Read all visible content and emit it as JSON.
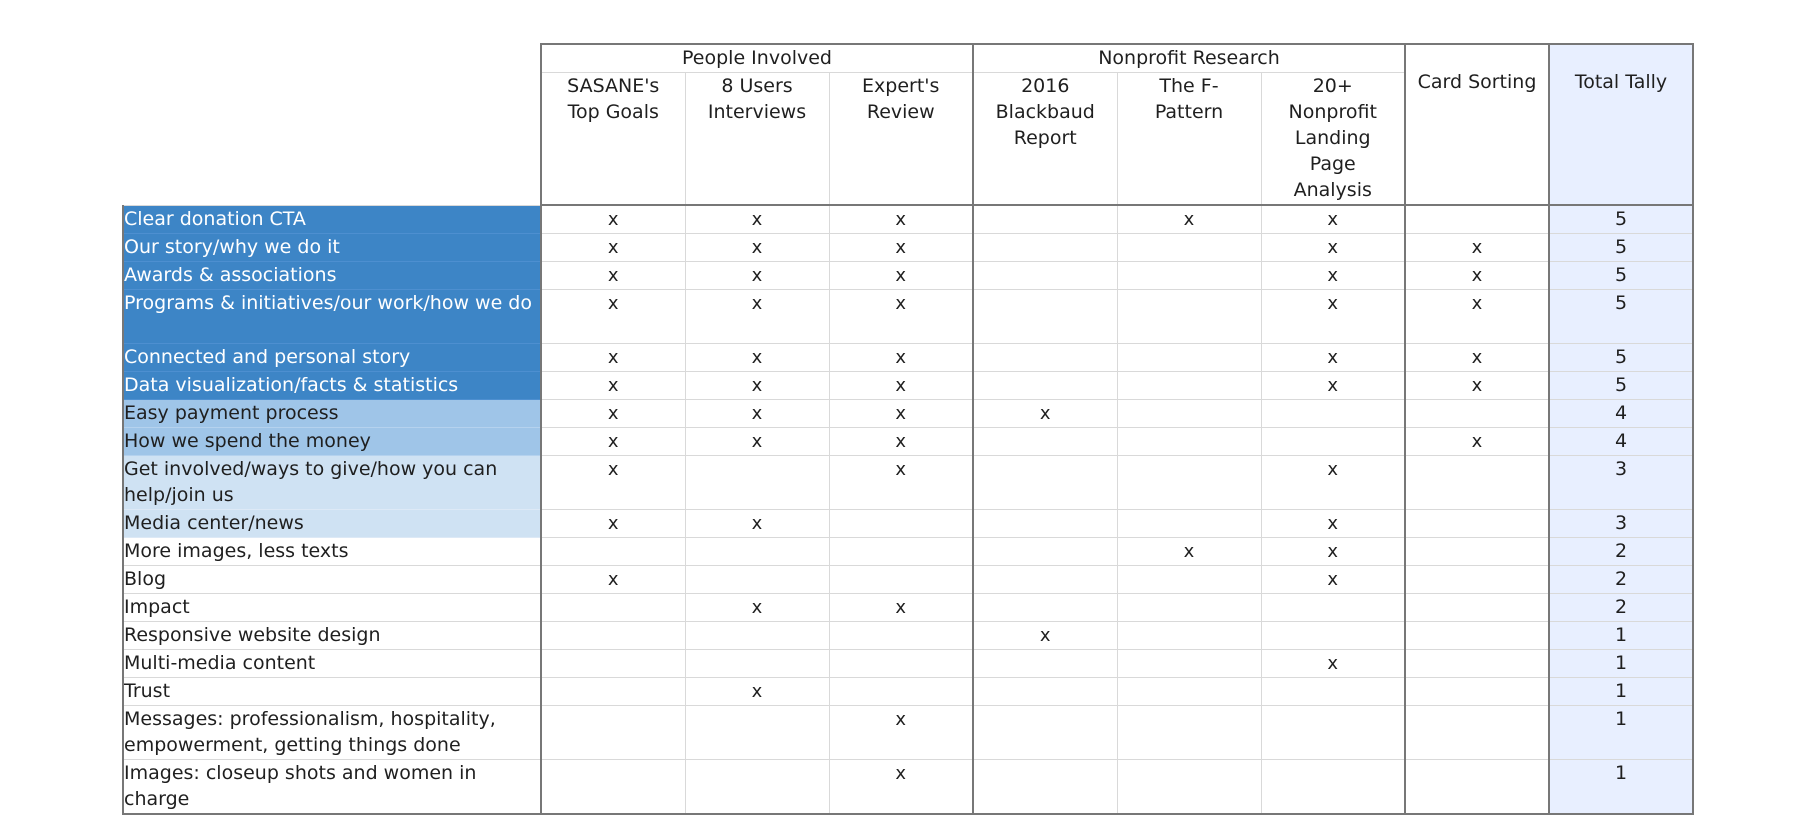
{
  "table": {
    "groups": [
      {
        "label": "People Involved",
        "span": 3
      },
      {
        "label": "Nonprofit Research",
        "span": 3
      }
    ],
    "columns": [
      "SASANE's Top Goals",
      "8 Users Interviews",
      "Expert's Review",
      "2016 Blackbaud Report",
      "The F-Pattern",
      "20+ Nonprofit Landing Page Analysis",
      "Card Sorting",
      "Total Tally"
    ],
    "mark_symbol": "x",
    "rows": [
      {
        "label": "Clear donation CTA",
        "tier": 5,
        "marks": [
          1,
          1,
          1,
          0,
          1,
          1,
          0
        ],
        "total": "5"
      },
      {
        "label": "Our story/why we do it",
        "tier": 5,
        "marks": [
          1,
          1,
          1,
          0,
          0,
          1,
          1
        ],
        "total": "5"
      },
      {
        "label": "Awards & associations",
        "tier": 5,
        "marks": [
          1,
          1,
          1,
          0,
          0,
          1,
          1
        ],
        "total": "5"
      },
      {
        "label": "Programs & initiatives/our work/how we do",
        "tier": 5,
        "marks": [
          1,
          1,
          1,
          0,
          0,
          1,
          1
        ],
        "total": "5"
      },
      {
        "label": "Connected and personal story",
        "tier": 5,
        "marks": [
          1,
          1,
          1,
          0,
          0,
          1,
          1
        ],
        "total": "5"
      },
      {
        "label": "Data visualization/facts & statistics",
        "tier": 5,
        "marks": [
          1,
          1,
          1,
          0,
          0,
          1,
          1
        ],
        "total": "5"
      },
      {
        "label": "Easy payment process",
        "tier": 4,
        "marks": [
          1,
          1,
          1,
          1,
          0,
          0,
          0
        ],
        "total": "4"
      },
      {
        "label": "How we spend the money",
        "tier": 4,
        "marks": [
          1,
          1,
          1,
          0,
          0,
          0,
          1
        ],
        "total": "4"
      },
      {
        "label": "Get involved/ways to give/how you can help/join us",
        "tier": 3,
        "marks": [
          1,
          0,
          1,
          0,
          0,
          1,
          0
        ],
        "total": "3"
      },
      {
        "label": "Media center/news",
        "tier": 3,
        "marks": [
          1,
          1,
          0,
          0,
          0,
          1,
          0
        ],
        "total": "3"
      },
      {
        "label": "More images, less texts",
        "tier": 2,
        "marks": [
          0,
          0,
          0,
          0,
          1,
          1,
          0
        ],
        "total": "2"
      },
      {
        "label": "Blog",
        "tier": 2,
        "marks": [
          1,
          0,
          0,
          0,
          0,
          1,
          0
        ],
        "total": "2"
      },
      {
        "label": "Impact",
        "tier": 2,
        "marks": [
          0,
          1,
          1,
          0,
          0,
          0,
          0
        ],
        "total": "2"
      },
      {
        "label": "Responsive website design",
        "tier": 1,
        "marks": [
          0,
          0,
          0,
          1,
          0,
          0,
          0
        ],
        "total": "1"
      },
      {
        "label": "Multi-media content",
        "tier": 1,
        "marks": [
          0,
          0,
          0,
          0,
          0,
          1,
          0
        ],
        "total": "1"
      },
      {
        "label": "Trust",
        "tier": 1,
        "marks": [
          0,
          1,
          0,
          0,
          0,
          0,
          0
        ],
        "total": "1"
      },
      {
        "label": "Messages: professionalism, hospitality, empowerment, getting things done",
        "tier": 1,
        "marks": [
          0,
          0,
          1,
          0,
          0,
          0,
          0
        ],
        "total": "1"
      },
      {
        "label": "Images: closeup shots and women in charge",
        "tier": 1,
        "marks": [
          0,
          0,
          1,
          0,
          0,
          0,
          0
        ],
        "total": "1"
      }
    ]
  },
  "colors": {
    "tier5": "#3d85c6",
    "tier4": "#9fc5e8",
    "tier3": "#cfe2f3",
    "total_column": "#e8efff",
    "border_dark": "#777777",
    "border_light": "#d9d9d9"
  }
}
